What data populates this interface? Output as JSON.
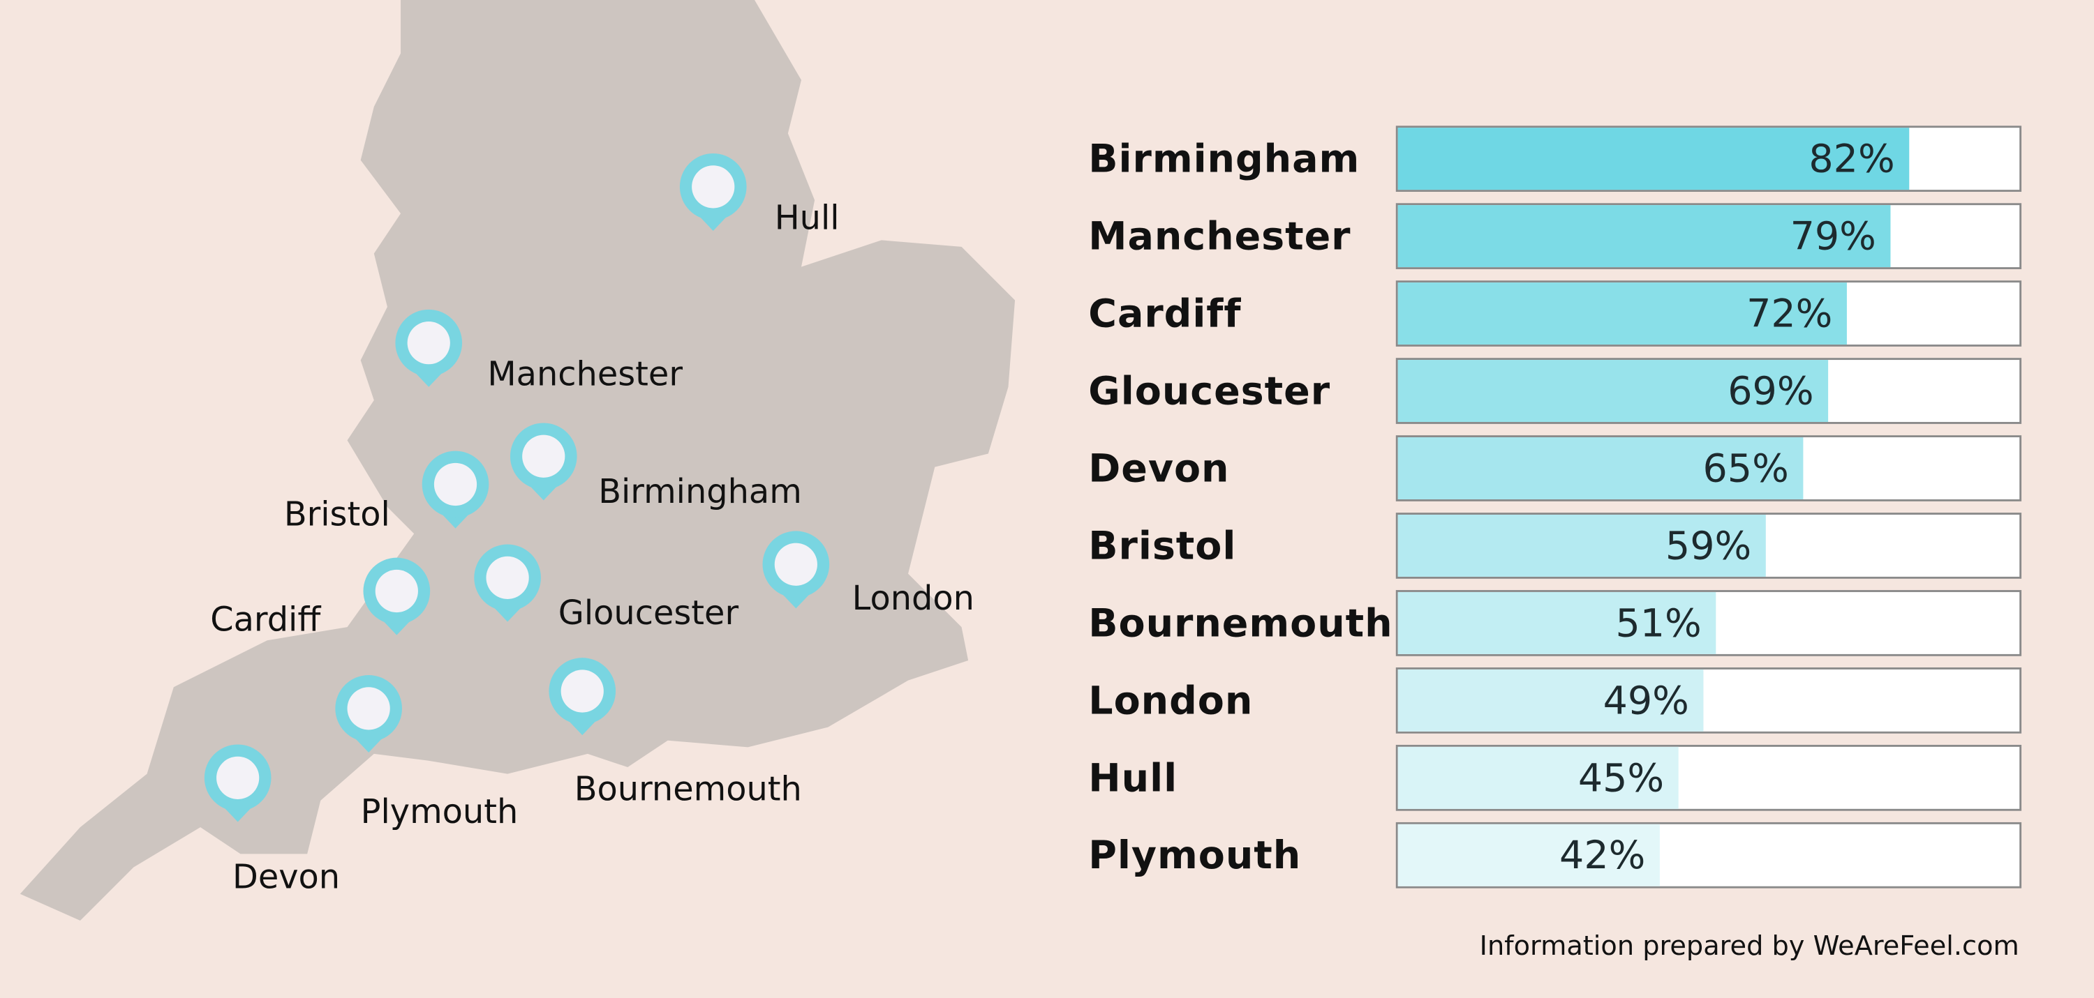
{
  "chart_data": {
    "type": "hbar",
    "categories": [
      "Birmingham",
      "Manchester",
      "Cardiff",
      "Gloucester",
      "Devon",
      "Bristol",
      "Bournemouth",
      "London",
      "Hull",
      "Plymouth"
    ],
    "values": [
      82,
      79,
      72,
      69,
      65,
      59,
      51,
      49,
      45,
      42
    ],
    "value_labels": [
      "82%",
      "79%",
      "72%",
      "69%",
      "65%",
      "59%",
      "51%",
      "49%",
      "45%",
      "42%"
    ],
    "colors": [
      "#6fd7e4",
      "#7cdbe6",
      "#89dfe8",
      "#98e3eb",
      "#a6e6ee",
      "#b4eaf1",
      "#c2eef3",
      "#cff1f5",
      "#d9f4f7",
      "#e3f7f9"
    ],
    "xlim": [
      0,
      100
    ]
  },
  "map": {
    "labels": [
      "Hull",
      "Manchester",
      "Birmingham",
      "Bristol",
      "Cardiff",
      "Gloucester",
      "London",
      "Bournemouth",
      "Plymouth",
      "Devon"
    ]
  },
  "footer": "Information prepared by WeAreFeel.com"
}
